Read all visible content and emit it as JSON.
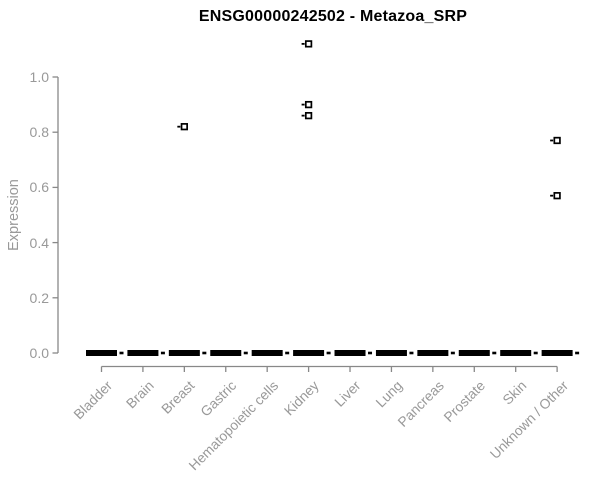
{
  "title": "ENSG00000242502 - Metazoa_SRP",
  "colors": {
    "background": "#ffffff",
    "title_text": "#000000",
    "axis_line": "#888888",
    "tick_label": "#999999",
    "box_fill": "#000000",
    "outlier_stroke": "#000000",
    "outlier_fill": "#ffffff"
  },
  "chart_data": {
    "type": "boxplot",
    "title": "ENSG00000242502 - Metazoa_SRP",
    "xlabel": "",
    "ylabel": "Expression",
    "ylim": [
      0.0,
      1.15
    ],
    "yticks": [
      0.0,
      0.2,
      0.4,
      0.6,
      0.8,
      1.0
    ],
    "grid": "off",
    "legend": "none",
    "outlier_marker": "small-open-square",
    "categories": [
      "Bladder",
      "Brain",
      "Breast",
      "Gastric",
      "Hematopoietic cells",
      "Kidney",
      "Liver",
      "Lung",
      "Pancreas",
      "Prostate",
      "Skin",
      "Unknown / Other"
    ],
    "series": [
      {
        "category": "Bladder",
        "whisker_low": 0.0,
        "q1": 0.0,
        "median": 0.0,
        "q3": 0.0,
        "whisker_high": 0.0,
        "outliers": []
      },
      {
        "category": "Brain",
        "whisker_low": 0.0,
        "q1": 0.0,
        "median": 0.0,
        "q3": 0.0,
        "whisker_high": 0.0,
        "outliers": []
      },
      {
        "category": "Breast",
        "whisker_low": 0.0,
        "q1": 0.0,
        "median": 0.0,
        "q3": 0.0,
        "whisker_high": 0.0,
        "outliers": [
          0.82
        ]
      },
      {
        "category": "Gastric",
        "whisker_low": 0.0,
        "q1": 0.0,
        "median": 0.0,
        "q3": 0.0,
        "whisker_high": 0.0,
        "outliers": []
      },
      {
        "category": "Hematopoietic cells",
        "whisker_low": 0.0,
        "q1": 0.0,
        "median": 0.0,
        "q3": 0.0,
        "whisker_high": 0.0,
        "outliers": []
      },
      {
        "category": "Kidney",
        "whisker_low": 0.0,
        "q1": 0.0,
        "median": 0.0,
        "q3": 0.0,
        "whisker_high": 0.0,
        "outliers": [
          1.12,
          0.9,
          0.86
        ]
      },
      {
        "category": "Liver",
        "whisker_low": 0.0,
        "q1": 0.0,
        "median": 0.0,
        "q3": 0.0,
        "whisker_high": 0.0,
        "outliers": []
      },
      {
        "category": "Lung",
        "whisker_low": 0.0,
        "q1": 0.0,
        "median": 0.0,
        "q3": 0.0,
        "whisker_high": 0.0,
        "outliers": []
      },
      {
        "category": "Pancreas",
        "whisker_low": 0.0,
        "q1": 0.0,
        "median": 0.0,
        "q3": 0.0,
        "whisker_high": 0.0,
        "outliers": []
      },
      {
        "category": "Prostate",
        "whisker_low": 0.0,
        "q1": 0.0,
        "median": 0.0,
        "q3": 0.0,
        "whisker_high": 0.0,
        "outliers": []
      },
      {
        "category": "Skin",
        "whisker_low": 0.0,
        "q1": 0.0,
        "median": 0.0,
        "q3": 0.0,
        "whisker_high": 0.0,
        "outliers": []
      },
      {
        "category": "Unknown / Other",
        "whisker_low": 0.0,
        "q1": 0.0,
        "median": 0.0,
        "q3": 0.0,
        "whisker_high": 0.0,
        "outliers": [
          0.77,
          0.57
        ]
      }
    ]
  }
}
